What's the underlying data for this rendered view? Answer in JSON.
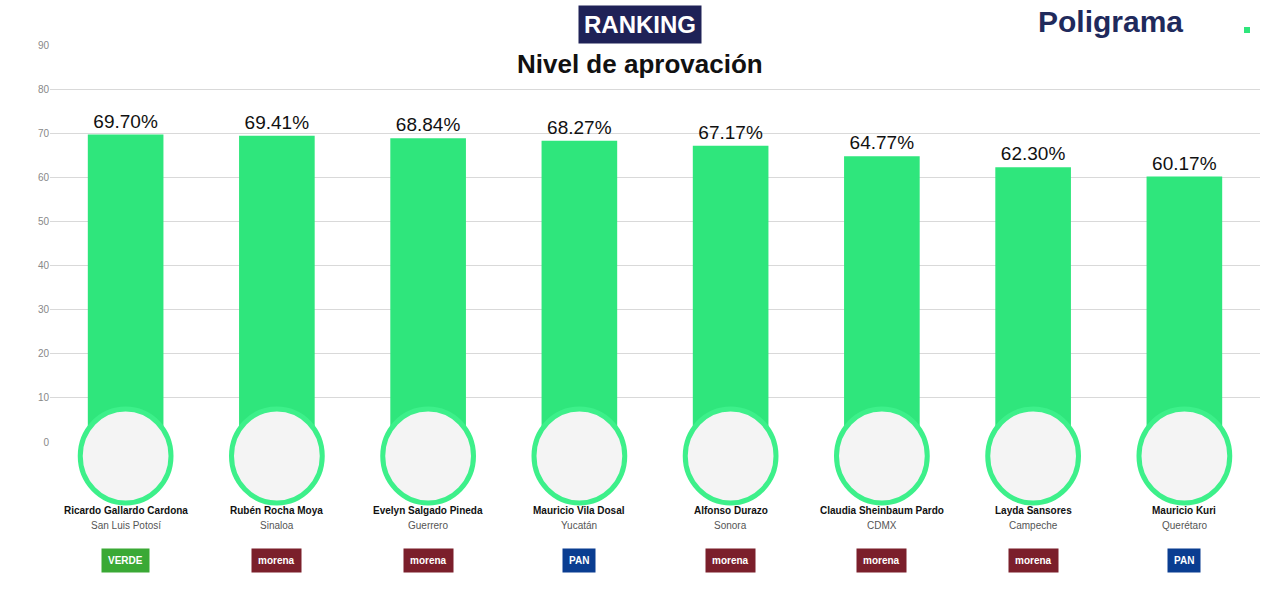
{
  "chart_data": {
    "type": "bar",
    "title": "Nivel de aprovación",
    "annotations": [
      {
        "text": "RANKING"
      },
      {
        "text": "Poligrama"
      }
    ],
    "categories": [
      "Ricardo Gallardo Cardona",
      "Rubén Rocha Moya",
      "Evelyn Salgado Pineda",
      "Mauricio Vila Dosal",
      "Alfonso Durazo",
      "Claudia Sheinbaum Pardo",
      "Layda Sansores",
      "Mauricio Kuri"
    ],
    "subcategories": [
      "San Luis Potosí",
      "Sinaloa",
      "Guerrero",
      "Yucatán",
      "Sonora",
      "CDMX",
      "Campeche",
      "Querétaro"
    ],
    "parties": [
      {
        "label": "VERDE",
        "color": "#3aa935"
      },
      {
        "label": "morena",
        "color": "#7b1f2b"
      },
      {
        "label": "morena",
        "color": "#7b1f2b"
      },
      {
        "label": "PAN",
        "color": "#0a3d91"
      },
      {
        "label": "morena",
        "color": "#7b1f2b"
      },
      {
        "label": "morena",
        "color": "#7b1f2b"
      },
      {
        "label": "morena",
        "color": "#7b1f2b"
      },
      {
        "label": "PAN",
        "color": "#0a3d91"
      }
    ],
    "values": [
      69.7,
      69.41,
      68.84,
      68.27,
      67.17,
      64.77,
      62.3,
      60.17
    ],
    "value_labels": [
      "69.70%",
      "69.41%",
      "68.84%",
      "68.27%",
      "67.17%",
      "64.77%",
      "62.30%",
      "60.17%"
    ],
    "data_labels": true,
    "color": "#2fe67c",
    "ylim": [
      0,
      90
    ],
    "yticks": [
      0,
      10,
      20,
      30,
      40,
      50,
      60,
      70,
      80,
      90
    ],
    "grid": true
  }
}
